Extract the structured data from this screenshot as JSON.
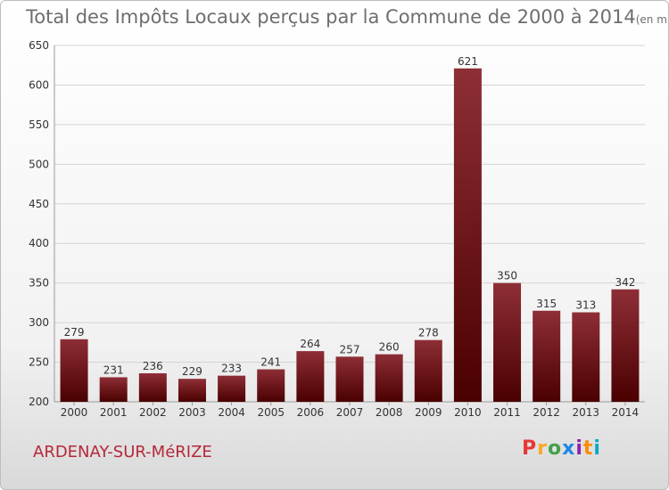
{
  "title": "Total des Impôts Locaux perçus par la Commune de 2000 à 2014",
  "unit_label": "(en milliers d'€)",
  "commune": "ARDENAY-SUR-MéRIZE",
  "logo": {
    "text": "Proxiti",
    "colors": [
      "#e53935",
      "#f9a825",
      "#43a047",
      "#1e88e5",
      "#8e24aa",
      "#fb8c00",
      "#00acc1"
    ]
  },
  "colors": {
    "bar_top": "#8e2e36",
    "bar_bottom": "#4a0000",
    "grid": "#d4d4d4",
    "axis_text": "#333333",
    "commune": "#b5283a"
  },
  "chart_data": {
    "type": "bar",
    "title": "Total des Impôts Locaux perçus par la Commune de 2000 à 2014",
    "ylabel": "",
    "xlabel": "",
    "categories": [
      "2000",
      "2001",
      "2002",
      "2003",
      "2004",
      "2005",
      "2006",
      "2007",
      "2008",
      "2009",
      "2010",
      "2011",
      "2012",
      "2013",
      "2014"
    ],
    "values": [
      279,
      231,
      236,
      229,
      233,
      241,
      264,
      257,
      260,
      278,
      621,
      350,
      315,
      313,
      342
    ],
    "ylim": [
      200,
      650
    ],
    "yticks": [
      200,
      250,
      300,
      350,
      400,
      450,
      500,
      550,
      600,
      650
    ],
    "grid": true
  }
}
